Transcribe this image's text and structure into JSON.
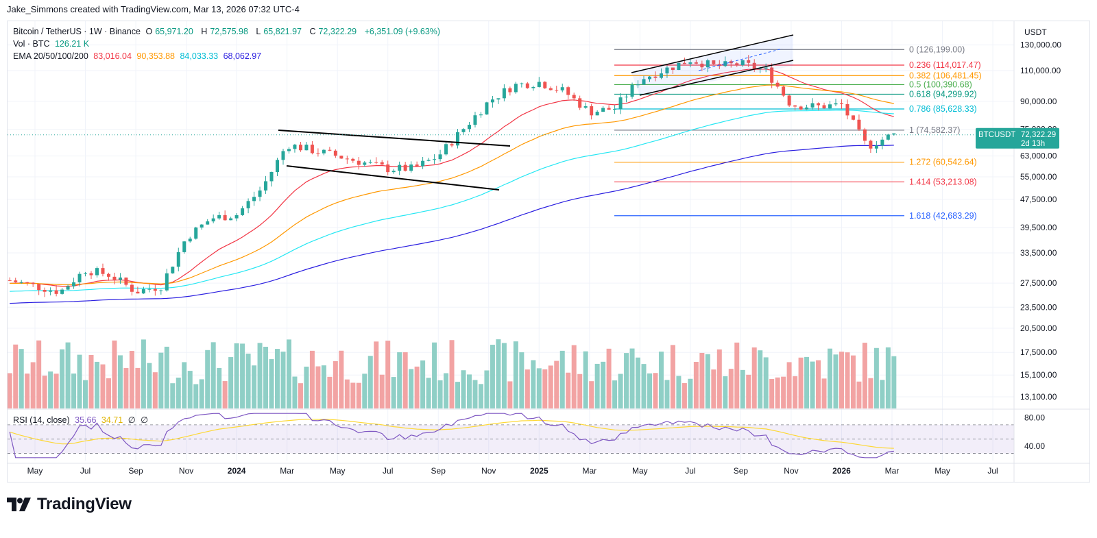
{
  "credit": "Jake_Simmons created with TradingView.com, Mar 13, 2026 07:32 UTC-4",
  "legend": {
    "title": "Bitcoin / TetherUS · 1W · Binance",
    "o_label": "O",
    "o": "65,971.20",
    "h_label": "H",
    "h": "72,575.98",
    "l_label": "L",
    "l": "65,821.97",
    "c_label": "C",
    "c": "72,322.29",
    "change": "+6,351.09 (+9.63%)",
    "vol_label": "Vol · BTC",
    "vol": "126.21 K",
    "ema_label": "EMA 20/50/100/200",
    "ema_values": [
      "83,016.04",
      "90,353.88",
      "84,033.33",
      "68,062.97"
    ],
    "ema_colors": [
      "#f23645",
      "#ff9800",
      "#26e7f3",
      "#2b1fe0"
    ]
  },
  "rsi_legend": {
    "label": "RSI (14, close)",
    "rsi": "35.66",
    "ma": "34.71",
    "icons": [
      "∅",
      "∅"
    ]
  },
  "currency": "USDT",
  "price_tag": {
    "symbol": "BTCUSDT",
    "price": "72,322.29",
    "countdown": "2d 13h"
  },
  "logo_text": "TradingView",
  "colors": {
    "up": "#26a69a",
    "down": "#ef5350",
    "vol_up": "#8fcfc6",
    "vol_down": "#f2a3a3",
    "rsi": "#7e57c2",
    "rsi_ma": "#fdd835"
  },
  "chart_data": {
    "type": "candlestick",
    "title": "Bitcoin / TetherUS · 1W · Binance",
    "y_scale": "log",
    "y_ticks": [
      "130,000.00",
      "110,000.00",
      "90,000.00",
      "75,000.00",
      "63,000.00",
      "55,000.00",
      "47,500.00",
      "39,500.00",
      "33,500.00",
      "27,500.00",
      "23,500.00",
      "20,500.00",
      "17,500.00",
      "15,100.00",
      "13,100.00"
    ],
    "x_ticks": [
      "May",
      "Jul",
      "Sep",
      "Nov",
      "2024",
      "Mar",
      "May",
      "Jul",
      "Sep",
      "Nov",
      "2025",
      "Mar",
      "May",
      "Jul",
      "Sep",
      "Nov",
      "2026",
      "Mar",
      "May",
      "Jul"
    ],
    "x_ticks_bold": [
      "2024",
      "2025",
      "2026"
    ],
    "price_path": [
      [
        "2023-04",
        28000
      ],
      [
        "2023-06",
        26000
      ],
      [
        "2023-07",
        30000
      ],
      [
        "2023-08",
        29000
      ],
      [
        "2023-09",
        26000
      ],
      [
        "2023-10",
        27000
      ],
      [
        "2023-11",
        37000
      ],
      [
        "2023-12",
        42000
      ],
      [
        "2024-01",
        43000
      ],
      [
        "2024-02",
        51000
      ],
      [
        "2024-03",
        68000
      ],
      [
        "2024-05",
        63000
      ],
      [
        "2024-07",
        58000
      ],
      [
        "2024-08",
        58000
      ],
      [
        "2024-09",
        63000
      ],
      [
        "2024-11",
        90000
      ],
      [
        "2024-12",
        100000
      ],
      [
        "2025-01",
        102000
      ],
      [
        "2025-02",
        96000
      ],
      [
        "2025-03",
        84000
      ],
      [
        "2025-04",
        86000
      ],
      [
        "2025-05",
        104000
      ],
      [
        "2025-07",
        118000
      ],
      [
        "2025-08",
        113000
      ],
      [
        "2025-09",
        115000
      ],
      [
        "2025-10",
        110000
      ],
      [
        "2025-11",
        88000
      ],
      [
        "2025-12",
        87000
      ],
      [
        "2026-01",
        88000
      ],
      [
        "2026-02",
        67000
      ],
      [
        "2026-03",
        72322.29
      ]
    ],
    "fibonacci": [
      {
        "level": "0",
        "price": "126,199.00",
        "color": "#787b86"
      },
      {
        "level": "0.236",
        "price": "114,017.47",
        "color": "#f23645"
      },
      {
        "level": "0.382",
        "price": "106,481.45",
        "color": "#ff9800"
      },
      {
        "level": "0.5",
        "price": "100,390.68",
        "color": "#4caf50"
      },
      {
        "level": "0.618",
        "price": "94,299.92",
        "color": "#089981"
      },
      {
        "level": "0.786",
        "price": "85,628.33",
        "color": "#00bcd4"
      },
      {
        "level": "1",
        "price": "74,582.37",
        "color": "#787b86"
      },
      {
        "level": "1.272",
        "price": "60,542.64",
        "color": "#ff9800"
      },
      {
        "level": "1.414",
        "price": "53,213.08",
        "color": "#f23645"
      },
      {
        "level": "1.618",
        "price": "42,683.29",
        "color": "#2962ff"
      }
    ],
    "rsi": {
      "period": 14,
      "value": 35.66,
      "ma": 34.71,
      "y_ticks": [
        "80.00",
        "40.00"
      ],
      "bands": [
        70,
        30
      ]
    }
  }
}
